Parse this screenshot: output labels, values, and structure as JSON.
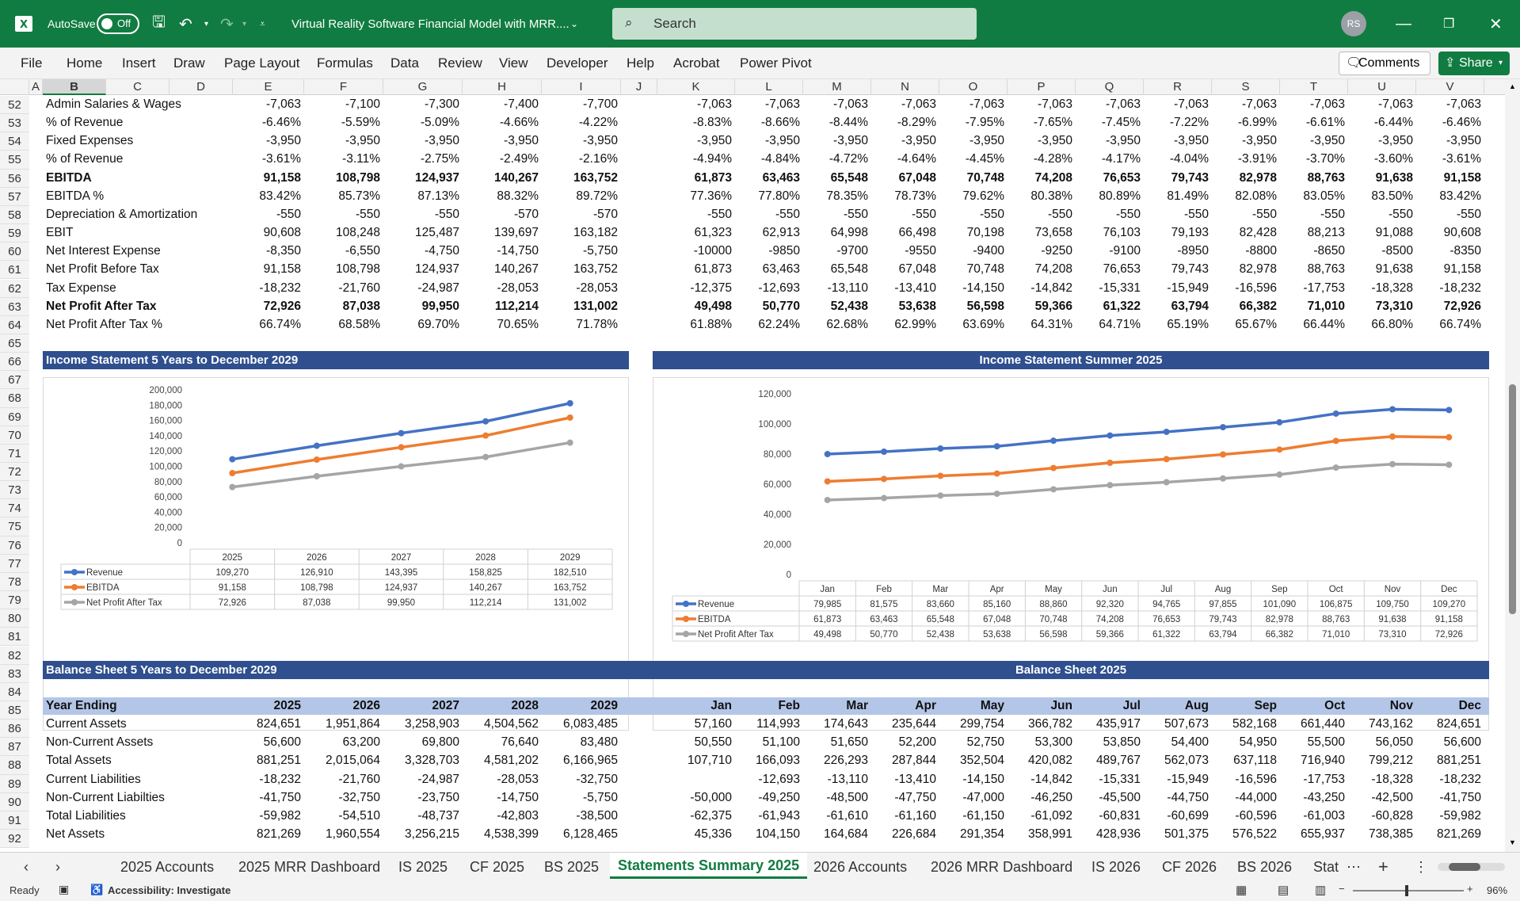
{
  "titlebar": {
    "autosave": "AutoSave",
    "toggle": "Off",
    "doc_title": "Virtual Reality Software Financial Model with MRR....",
    "search": "Search",
    "user": "RS"
  },
  "menu": [
    "File",
    "Home",
    "Insert",
    "Draw",
    "Page Layout",
    "Formulas",
    "Data",
    "Review",
    "View",
    "Developer",
    "Help",
    "Acrobat",
    "Power Pivot"
  ],
  "comments": "Comments",
  "share": "Share",
  "columns": [
    "A",
    "B",
    "C",
    "D",
    "E",
    "F",
    "G",
    "H",
    "I",
    "J",
    "K",
    "L",
    "M",
    "N",
    "O",
    "P",
    "Q",
    "R",
    "S",
    "T",
    "U",
    "V"
  ],
  "rows_top": [
    {
      "n": "52",
      "label": "Admin Salaries & Wages",
      "bold": false,
      "vals": [
        "-7,063",
        "-7,100",
        "-7,300",
        "-7,400",
        "-7,700",
        "-7,063",
        "-7,063",
        "-7,063",
        "-7,063",
        "-7,063",
        "-7,063",
        "-7,063",
        "-7,063",
        "-7,063",
        "-7,063",
        "-7,063",
        "-7,063"
      ]
    },
    {
      "n": "53",
      "label": "% of Revenue",
      "bold": false,
      "vals": [
        "-6.46%",
        "-5.59%",
        "-5.09%",
        "-4.66%",
        "-4.22%",
        "-8.83%",
        "-8.66%",
        "-8.44%",
        "-8.29%",
        "-7.95%",
        "-7.65%",
        "-7.45%",
        "-7.22%",
        "-6.99%",
        "-6.61%",
        "-6.44%",
        "-6.46%"
      ]
    },
    {
      "n": "54",
      "label": "Fixed Expenses",
      "bold": false,
      "vals": [
        "-3,950",
        "-3,950",
        "-3,950",
        "-3,950",
        "-3,950",
        "-3,950",
        "-3,950",
        "-3,950",
        "-3,950",
        "-3,950",
        "-3,950",
        "-3,950",
        "-3,950",
        "-3,950",
        "-3,950",
        "-3,950",
        "-3,950"
      ]
    },
    {
      "n": "55",
      "label": "% of Revenue",
      "bold": false,
      "vals": [
        "-3.61%",
        "-3.11%",
        "-2.75%",
        "-2.49%",
        "-2.16%",
        "-4.94%",
        "-4.84%",
        "-4.72%",
        "-4.64%",
        "-4.45%",
        "-4.28%",
        "-4.17%",
        "-4.04%",
        "-3.91%",
        "-3.70%",
        "-3.60%",
        "-3.61%"
      ]
    },
    {
      "n": "56",
      "label": "EBITDA",
      "bold": true,
      "vals": [
        "91,158",
        "108,798",
        "124,937",
        "140,267",
        "163,752",
        "61,873",
        "63,463",
        "65,548",
        "67,048",
        "70,748",
        "74,208",
        "76,653",
        "79,743",
        "82,978",
        "88,763",
        "91,638",
        "91,158"
      ]
    },
    {
      "n": "57",
      "label": "EBITDA %",
      "bold": false,
      "vals": [
        "83.42%",
        "85.73%",
        "87.13%",
        "88.32%",
        "89.72%",
        "77.36%",
        "77.80%",
        "78.35%",
        "78.73%",
        "79.62%",
        "80.38%",
        "80.89%",
        "81.49%",
        "82.08%",
        "83.05%",
        "83.50%",
        "83.42%"
      ]
    },
    {
      "n": "58",
      "label": "Depreciation & Amortization",
      "bold": false,
      "vals": [
        "-550",
        "-550",
        "-550",
        "-570",
        "-570",
        "-550",
        "-550",
        "-550",
        "-550",
        "-550",
        "-550",
        "-550",
        "-550",
        "-550",
        "-550",
        "-550",
        "-550"
      ]
    },
    {
      "n": "59",
      "label": "EBIT",
      "bold": false,
      "vals": [
        "90,608",
        "108,248",
        "125,487",
        "139,697",
        "163,182",
        "61,323",
        "62,913",
        "64,998",
        "66,498",
        "70,198",
        "73,658",
        "76,103",
        "79,193",
        "82,428",
        "88,213",
        "91,088",
        "90,608"
      ]
    },
    {
      "n": "60",
      "label": "Net Interest Expense",
      "bold": false,
      "vals": [
        "-8,350",
        "-6,550",
        "-4,750",
        "-14,750",
        "-5,750",
        "-10000",
        "-9850",
        "-9700",
        "-9550",
        "-9400",
        "-9250",
        "-9100",
        "-8950",
        "-8800",
        "-8650",
        "-8500",
        "-8350"
      ]
    },
    {
      "n": "61",
      "label": "Net Profit Before Tax",
      "bold": false,
      "vals": [
        "91,158",
        "108,798",
        "124,937",
        "140,267",
        "163,752",
        "61,873",
        "63,463",
        "65,548",
        "67,048",
        "70,748",
        "74,208",
        "76,653",
        "79,743",
        "82,978",
        "88,763",
        "91,638",
        "91,158"
      ]
    },
    {
      "n": "62",
      "label": "Tax Expense",
      "bold": false,
      "vals": [
        "-18,232",
        "-21,760",
        "-24,987",
        "-28,053",
        "-28,053",
        "-12,375",
        "-12,693",
        "-13,110",
        "-13,410",
        "-14,150",
        "-14,842",
        "-15,331",
        "-15,949",
        "-16,596",
        "-17,753",
        "-18,328",
        "-18,232"
      ]
    },
    {
      "n": "63",
      "label": "Net Profit After Tax",
      "bold": true,
      "vals": [
        "72,926",
        "87,038",
        "99,950",
        "112,214",
        "131,002",
        "49,498",
        "50,770",
        "52,438",
        "53,638",
        "56,598",
        "59,366",
        "61,322",
        "63,794",
        "66,382",
        "71,010",
        "73,310",
        "72,926"
      ]
    },
    {
      "n": "64",
      "label": "Net Profit After Tax %",
      "bold": false,
      "vals": [
        "66.74%",
        "68.58%",
        "69.70%",
        "70.65%",
        "71.78%",
        "61.88%",
        "62.24%",
        "62.68%",
        "62.99%",
        "63.69%",
        "64.31%",
        "64.71%",
        "65.19%",
        "65.67%",
        "66.44%",
        "66.80%",
        "66.74%"
      ]
    }
  ],
  "row_numbers": [
    "52",
    "53",
    "54",
    "55",
    "56",
    "57",
    "58",
    "59",
    "60",
    "61",
    "62",
    "63",
    "64",
    "65",
    "66",
    "67",
    "68",
    "69",
    "70",
    "71",
    "72",
    "73",
    "74",
    "75",
    "76",
    "77",
    "78",
    "79",
    "80",
    "81",
    "82",
    "83",
    "84",
    "85",
    "86",
    "87",
    "88",
    "89",
    "90",
    "91",
    "92"
  ],
  "banners": {
    "is5": "Income Statement 5 Years to December 2029",
    "issum": "Income Statement Summer 2025",
    "bs5": "Balance Sheet 5 Years to December 2029",
    "bs25": "Balance Sheet 2025"
  },
  "chart_data": [
    {
      "type": "line",
      "categories": [
        "2025",
        "2026",
        "2027",
        "2028",
        "2029"
      ],
      "ylim": [
        0,
        200000
      ],
      "yticks": [
        "200,000",
        "180,000",
        "160,000",
        "140,000",
        "120,000",
        "100,000",
        "80,000",
        "60,000",
        "40,000",
        "20,000",
        "0"
      ],
      "series": [
        {
          "name": "Revenue",
          "color": "#4472c4",
          "values": [
            109270,
            126910,
            143395,
            158825,
            182510
          ],
          "labels": [
            "109,270",
            "126,910",
            "143,395",
            "158,825",
            "182,510"
          ]
        },
        {
          "name": "EBITDA",
          "color": "#ed7d31",
          "values": [
            91158,
            108798,
            124937,
            140267,
            163752
          ],
          "labels": [
            "91,158",
            "108,798",
            "124,937",
            "140,267",
            "163,752"
          ]
        },
        {
          "name": "Net Profit After Tax",
          "color": "#a5a5a5",
          "values": [
            72926,
            87038,
            99950,
            112214,
            131002
          ],
          "labels": [
            "72,926",
            "87,038",
            "99,950",
            "112,214",
            "131,002"
          ]
        }
      ]
    },
    {
      "type": "line",
      "categories": [
        "Jan",
        "Feb",
        "Mar",
        "Apr",
        "May",
        "Jun",
        "Jul",
        "Aug",
        "Sep",
        "Oct",
        "Nov",
        "Dec"
      ],
      "ylim": [
        0,
        120000
      ],
      "yticks": [
        "120,000",
        "100,000",
        "80,000",
        "60,000",
        "40,000",
        "20,000",
        "0"
      ],
      "series": [
        {
          "name": "Revenue",
          "color": "#4472c4",
          "values": [
            79985,
            81575,
            83660,
            85160,
            88860,
            92320,
            94765,
            97855,
            101090,
            106875,
            109750,
            109270
          ],
          "labels": [
            "79,985",
            "81,575",
            "83,660",
            "85,160",
            "88,860",
            "92,320",
            "94,765",
            "97,855",
            "101,090",
            "106,875",
            "109,750",
            "109,270"
          ]
        },
        {
          "name": "EBITDA",
          "color": "#ed7d31",
          "values": [
            61873,
            63463,
            65548,
            67048,
            70748,
            74208,
            76653,
            79743,
            82978,
            88763,
            91638,
            91158
          ],
          "labels": [
            "61,873",
            "63,463",
            "65,548",
            "67,048",
            "70,748",
            "74,208",
            "76,653",
            "79,743",
            "82,978",
            "88,763",
            "91,638",
            "91,158"
          ]
        },
        {
          "name": "Net Profit After Tax",
          "color": "#a5a5a5",
          "values": [
            49498,
            50770,
            52438,
            53638,
            56598,
            59366,
            61322,
            63794,
            66382,
            71010,
            73310,
            72926
          ],
          "labels": [
            "49,498",
            "50,770",
            "52,438",
            "53,638",
            "56,598",
            "59,366",
            "61,322",
            "63,794",
            "66,382",
            "71,010",
            "73,310",
            "72,926"
          ]
        }
      ]
    }
  ],
  "bs_header": {
    "label": "Year Ending",
    "vals": [
      "2025",
      "2026",
      "2027",
      "2028",
      "2029",
      "Jan",
      "Feb",
      "Mar",
      "Apr",
      "May",
      "Jun",
      "Jul",
      "Aug",
      "Sep",
      "Oct",
      "Nov",
      "Dec"
    ]
  },
  "bs_rows": [
    {
      "label": "Current Assets",
      "vals": [
        "824,651",
        "1,951,864",
        "3,258,903",
        "4,504,562",
        "6,083,485",
        "57,160",
        "114,993",
        "174,643",
        "235,644",
        "299,754",
        "366,782",
        "435,917",
        "507,673",
        "582,168",
        "661,440",
        "743,162",
        "824,651"
      ]
    },
    {
      "label": "Non-Current Assets",
      "vals": [
        "56,600",
        "63,200",
        "69,800",
        "76,640",
        "83,480",
        "50,550",
        "51,100",
        "51,650",
        "52,200",
        "52,750",
        "53,300",
        "53,850",
        "54,400",
        "54,950",
        "55,500",
        "56,050",
        "56,600"
      ]
    },
    {
      "label": "Total Assets",
      "vals": [
        "881,251",
        "2,015,064",
        "3,328,703",
        "4,581,202",
        "6,166,965",
        "107,710",
        "166,093",
        "226,293",
        "287,844",
        "352,504",
        "420,082",
        "489,767",
        "562,073",
        "637,118",
        "716,940",
        "799,212",
        "881,251"
      ]
    },
    {
      "label": "Current Liabilities",
      "vals": [
        "-18,232",
        "-21,760",
        "-24,987",
        "-28,053",
        "-32,750",
        "",
        "-12,693",
        "-13,110",
        "-13,410",
        "-14,150",
        "-14,842",
        "-15,331",
        "-15,949",
        "-16,596",
        "-17,753",
        "-18,328",
        "-18,232"
      ]
    },
    {
      "label": "Non-Current Liabilties",
      "vals": [
        "-41,750",
        "-32,750",
        "-23,750",
        "-14,750",
        "-5,750",
        "-50,000",
        "-49,250",
        "-48,500",
        "-47,750",
        "-47,000",
        "-46,250",
        "-45,500",
        "-44,750",
        "-44,000",
        "-43,250",
        "-42,500",
        "-41,750"
      ]
    },
    {
      "label": "Total Liabilities",
      "vals": [
        "-59,982",
        "-54,510",
        "-48,737",
        "-42,803",
        "-38,500",
        "-62,375",
        "-61,943",
        "-61,610",
        "-61,160",
        "-61,150",
        "-61,092",
        "-60,831",
        "-60,699",
        "-60,596",
        "-61,003",
        "-60,828",
        "-59,982"
      ]
    },
    {
      "label": "Net Assets",
      "vals": [
        "821,269",
        "1,960,554",
        "3,256,215",
        "4,538,399",
        "6,128,465",
        "45,336",
        "104,150",
        "164,684",
        "226,684",
        "291,354",
        "358,991",
        "428,936",
        "501,375",
        "576,522",
        "655,937",
        "738,385",
        "821,269"
      ]
    }
  ],
  "tabs": [
    "2025 Accounts",
    "2025 MRR Dashboard",
    "IS 2025",
    "CF 2025",
    "BS 2025",
    "Statements Summary 2025",
    "2026 Accounts",
    "2026 MRR Dashboard",
    "IS 2026",
    "CF 2026",
    "BS 2026",
    "Stat"
  ],
  "active_tab": "Statements Summary 2025",
  "status": {
    "ready": "Ready",
    "accessibility": "Accessibility: Investigate",
    "zoom": "96%"
  }
}
